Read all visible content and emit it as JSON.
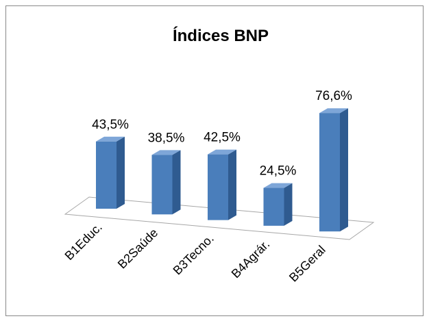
{
  "chart_data": {
    "type": "bar",
    "title": "Índices BNP",
    "categories": [
      "B1Educ.",
      "B2Saúde",
      "B3Tecno.",
      "B4Agrár.",
      "B5Geral"
    ],
    "values": [
      43.5,
      38.5,
      42.5,
      24.5,
      76.6
    ],
    "value_labels": [
      "43,5%",
      "38,5%",
      "42,5%",
      "24,5%",
      "76,6%"
    ],
    "color": "#4a7ebb"
  }
}
